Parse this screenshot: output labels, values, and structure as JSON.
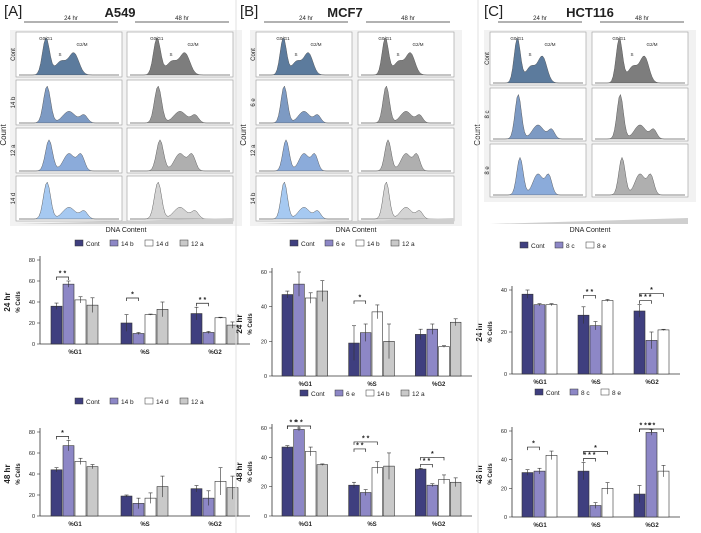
{
  "panels": [
    {
      "tag": "[A]",
      "title": "A549",
      "y_label": "Count",
      "x_label": "DNA Content",
      "time_left": "24 hr",
      "time_right": "48 hr",
      "rows": [
        "Cont",
        "14 b",
        "12 a",
        "14 d"
      ],
      "phase_labels": [
        "G0/G1",
        "S",
        "G2/M"
      ]
    },
    {
      "tag": "[B]",
      "title": "MCF7",
      "y_label": "Count",
      "x_label": "DNA Content",
      "time_left": "24 hr",
      "time_right": "48 hr",
      "rows": [
        "Cont",
        "6 e",
        "12 a",
        "14 b"
      ],
      "phase_labels": [
        "G0/G1",
        "S",
        "G2/M"
      ]
    },
    {
      "tag": "[C]",
      "title": "HCT116",
      "y_label": "Count",
      "x_label": "DNA Content",
      "time_left": "24 hr",
      "time_right": "48 hr",
      "rows": [
        "Cont",
        "8 c",
        "8 e"
      ],
      "phase_labels": [
        "G0/G1",
        "S",
        "G2/M"
      ]
    }
  ],
  "colors": {
    "cont": "#3f3f7f",
    "s2": "#8d87c6",
    "s3": "#ffffff",
    "s4": "#c9c9c9",
    "hist24": [
      "#4a6d92",
      "#6f8fbd",
      "#7ea2d6",
      "#9cc3ef"
    ],
    "hist48": [
      "#6f6f6f",
      "#8c8c8c",
      "#a6a6a6",
      "#cfcfcf"
    ]
  },
  "chart_data": [
    {
      "type": "bar",
      "id": "A549-24",
      "row_label": "24 hr",
      "ylabel": "% Cells",
      "ylim": [
        0,
        80
      ],
      "ticks": [
        0,
        20,
        40,
        60,
        80
      ],
      "categories": [
        "%G1",
        "%S",
        "%G2"
      ],
      "series": [
        {
          "name": "Cont",
          "values": [
            36,
            20,
            29
          ],
          "errors": [
            3,
            8,
            6
          ]
        },
        {
          "name": "14 b",
          "values": [
            57,
            10,
            11
          ],
          "errors": [
            3,
            1,
            1
          ]
        },
        {
          "name": "14 d",
          "values": [
            42,
            28,
            25
          ],
          "errors": [
            3,
            0.5,
            0.5
          ]
        },
        {
          "name": "12 a",
          "values": [
            37,
            33,
            18
          ],
          "errors": [
            7,
            7,
            3
          ]
        }
      ],
      "significance": [
        {
          "label": "* *",
          "cat": 0
        },
        {
          "label": "*",
          "cat": 1
        },
        {
          "label": "* *",
          "cat": 2
        }
      ]
    },
    {
      "type": "bar",
      "id": "MCF7-24",
      "row_label": "24 hr",
      "ylabel": "% Cells",
      "ylim": [
        0,
        60
      ],
      "ticks": [
        0,
        20,
        40,
        60
      ],
      "categories": [
        "%G1",
        "%S",
        "%G2"
      ],
      "series": [
        {
          "name": "Cont",
          "values": [
            47,
            19,
            24
          ],
          "errors": [
            2,
            10,
            3
          ]
        },
        {
          "name": "6 e",
          "values": [
            53,
            25,
            27
          ],
          "errors": [
            7,
            5,
            3
          ]
        },
        {
          "name": "14 b",
          "values": [
            45,
            37,
            17
          ],
          "errors": [
            3,
            4,
            0.5
          ]
        },
        {
          "name": "12 a",
          "values": [
            49,
            20,
            31
          ],
          "errors": [
            6,
            10,
            2
          ]
        }
      ],
      "significance": [
        {
          "label": "*",
          "cat": 1
        }
      ]
    },
    {
      "type": "bar",
      "id": "HCT116-24",
      "row_label": "24 hr",
      "ylabel": "% Cells",
      "ylim": [
        0,
        40
      ],
      "ticks": [
        0,
        20,
        40
      ],
      "categories": [
        "%G1",
        "%S",
        "%G2"
      ],
      "series": [
        {
          "name": "Cont",
          "values": [
            38,
            28,
            30
          ],
          "errors": [
            2,
            4,
            3
          ]
        },
        {
          "name": "8 c",
          "values": [
            33,
            23,
            16
          ],
          "errors": [
            0.5,
            2,
            4
          ]
        },
        {
          "name": "8 e",
          "values": [
            33,
            35,
            21
          ],
          "errors": [
            0.5,
            0.5,
            0.3
          ]
        }
      ],
      "significance": [
        {
          "label": "* *",
          "cat": 1
        },
        {
          "label": "* * *",
          "cat": 2
        },
        {
          "label": "*",
          "cat": 2
        }
      ]
    },
    {
      "type": "bar",
      "id": "A549-48",
      "row_label": "48 hr",
      "ylabel": "% Cells",
      "ylim": [
        0,
        80
      ],
      "ticks": [
        0,
        20,
        40,
        60,
        80
      ],
      "categories": [
        "%G1",
        "%S",
        "%G2"
      ],
      "series": [
        {
          "name": "Cont",
          "values": [
            44,
            19,
            26
          ],
          "errors": [
            2,
            1,
            3
          ]
        },
        {
          "name": "14 b",
          "values": [
            67,
            12,
            17
          ],
          "errors": [
            5,
            5,
            7
          ]
        },
        {
          "name": "14 d",
          "values": [
            52,
            17,
            33
          ],
          "errors": [
            3,
            5,
            13
          ]
        },
        {
          "name": "12 a",
          "values": [
            47,
            28,
            27
          ],
          "errors": [
            2,
            10,
            11
          ]
        }
      ],
      "significance": [
        {
          "label": "*",
          "cat": 0
        }
      ]
    },
    {
      "type": "bar",
      "id": "MCF7-48",
      "row_label": "48 hr",
      "ylabel": "% Cells",
      "ylim": [
        0,
        60
      ],
      "ticks": [
        0,
        20,
        40,
        60
      ],
      "categories": [
        "%G1",
        "%S",
        "%G2"
      ],
      "series": [
        {
          "name": "Cont",
          "values": [
            47,
            21,
            32
          ],
          "errors": [
            1,
            2,
            0.5
          ]
        },
        {
          "name": "6 e",
          "values": [
            59,
            16,
            21
          ],
          "errors": [
            1,
            2,
            1
          ]
        },
        {
          "name": "14 b",
          "values": [
            44,
            33,
            25
          ],
          "errors": [
            3,
            4,
            3
          ]
        },
        {
          "name": "12 a",
          "values": [
            35,
            34,
            23
          ],
          "errors": [
            0.5,
            9,
            3
          ]
        }
      ],
      "significance": [
        {
          "label": "* *",
          "cat": 0
        },
        {
          "label": "* *",
          "cat": 0
        },
        {
          "label": "* *",
          "cat": 1
        },
        {
          "label": "* *",
          "cat": 1
        },
        {
          "label": "* *",
          "cat": 2
        },
        {
          "label": "*",
          "cat": 2
        }
      ]
    },
    {
      "type": "bar",
      "id": "HCT116-48",
      "row_label": "48 hr",
      "ylabel": "% Cells",
      "ylim": [
        0,
        60
      ],
      "ticks": [
        0,
        20,
        40,
        60
      ],
      "categories": [
        "%G1",
        "%S",
        "%G2"
      ],
      "series": [
        {
          "name": "Cont",
          "values": [
            31,
            32,
            16
          ],
          "errors": [
            2,
            6,
            6
          ]
        },
        {
          "name": "8 c",
          "values": [
            32,
            8,
            59
          ],
          "errors": [
            2,
            2,
            2
          ]
        },
        {
          "name": "8 e",
          "values": [
            43,
            20,
            32
          ],
          "errors": [
            3,
            4,
            4
          ]
        }
      ],
      "significance": [
        {
          "label": "*",
          "cat": 0
        },
        {
          "label": "* * *",
          "cat": 1
        },
        {
          "label": "*",
          "cat": 1
        },
        {
          "label": "* * *",
          "cat": 2
        },
        {
          "label": "* *",
          "cat": 2
        }
      ]
    }
  ]
}
